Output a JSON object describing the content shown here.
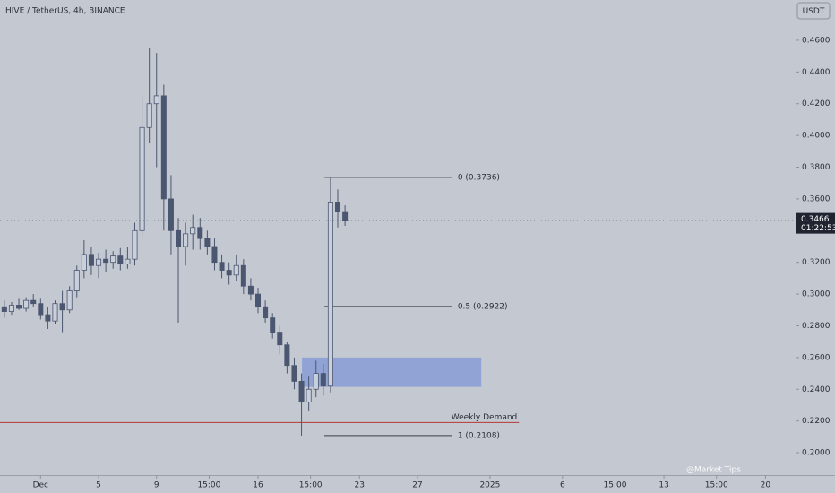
{
  "chart_data": {
    "type": "candlestick",
    "title": "HIVE / TetherUS, 4h, BINANCE",
    "currency_button": "USDT",
    "x": [
      -1.5,
      -1,
      -0.5,
      0,
      0.5,
      1,
      1.5,
      2,
      2.5,
      3,
      3.5,
      4,
      4.5,
      5,
      5.5,
      6,
      6.5,
      7,
      7.5,
      8,
      8.5,
      9,
      9.5,
      10,
      10.5,
      11,
      11.5,
      12,
      12.5,
      13,
      13.5,
      14,
      14.5,
      15,
      15.5,
      16,
      16.5,
      17,
      17.5,
      18,
      18.5,
      19,
      19.5,
      20,
      20.5,
      21,
      21.5,
      22
    ],
    "open": [
      0.292,
      0.289,
      0.293,
      0.291,
      0.296,
      0.294,
      0.287,
      0.283,
      0.294,
      0.29,
      0.302,
      0.315,
      0.325,
      0.318,
      0.322,
      0.32,
      0.324,
      0.319,
      0.322,
      0.34,
      0.405,
      0.42,
      0.425,
      0.36,
      0.34,
      0.33,
      0.338,
      0.342,
      0.335,
      0.33,
      0.32,
      0.315,
      0.312,
      0.318,
      0.305,
      0.3,
      0.292,
      0.285,
      0.276,
      0.268,
      0.255,
      0.245,
      0.232,
      0.24,
      0.25,
      0.242,
      0.358,
      0.352
    ],
    "high": [
      0.296,
      0.295,
      0.297,
      0.298,
      0.3,
      0.297,
      0.292,
      0.296,
      0.302,
      0.305,
      0.318,
      0.334,
      0.33,
      0.326,
      0.328,
      0.327,
      0.329,
      0.33,
      0.345,
      0.425,
      0.455,
      0.452,
      0.432,
      0.375,
      0.348,
      0.345,
      0.35,
      0.348,
      0.34,
      0.335,
      0.325,
      0.32,
      0.325,
      0.322,
      0.31,
      0.304,
      0.296,
      0.288,
      0.28,
      0.27,
      0.26,
      0.25,
      0.248,
      0.258,
      0.256,
      0.3736,
      0.366,
      0.356
    ],
    "low": [
      0.285,
      0.287,
      0.29,
      0.289,
      0.292,
      0.284,
      0.278,
      0.281,
      0.276,
      0.288,
      0.298,
      0.31,
      0.312,
      0.31,
      0.314,
      0.316,
      0.315,
      0.316,
      0.318,
      0.335,
      0.395,
      0.38,
      0.34,
      0.325,
      0.282,
      0.318,
      0.328,
      0.328,
      0.325,
      0.315,
      0.31,
      0.306,
      0.308,
      0.3,
      0.296,
      0.288,
      0.282,
      0.272,
      0.262,
      0.25,
      0.24,
      0.2108,
      0.226,
      0.235,
      0.236,
      0.238,
      0.342,
      0.343
    ],
    "close": [
      0.289,
      0.293,
      0.291,
      0.296,
      0.294,
      0.287,
      0.283,
      0.294,
      0.29,
      0.302,
      0.315,
      0.325,
      0.318,
      0.322,
      0.32,
      0.324,
      0.319,
      0.322,
      0.34,
      0.405,
      0.42,
      0.425,
      0.36,
      0.34,
      0.33,
      0.338,
      0.342,
      0.335,
      0.33,
      0.32,
      0.315,
      0.312,
      0.318,
      0.305,
      0.3,
      0.292,
      0.285,
      0.276,
      0.268,
      0.255,
      0.245,
      0.232,
      0.24,
      0.25,
      0.242,
      0.358,
      0.352,
      0.3466
    ],
    "up_color": "#c9cfdb",
    "down_color": "#4b5670",
    "wick_color": "#4b5670",
    "xlim": [
      -1.8,
      53.08
    ],
    "ylim": [
      0.1859,
      0.4854
    ],
    "xticks": [
      {
        "value": 1,
        "label": "Dec"
      },
      5,
      9,
      {
        "value": 12.625,
        "label": "15:00"
      },
      16,
      {
        "value": 19.625,
        "label": "15:00"
      },
      23,
      27,
      {
        "value": 32,
        "label": "2025"
      },
      {
        "value": 37,
        "label": "6"
      },
      {
        "value": 40.625,
        "label": "15:00"
      },
      {
        "value": 44,
        "label": "13"
      },
      {
        "value": 47.625,
        "label": "15:00"
      },
      {
        "value": 51,
        "label": "20"
      }
    ],
    "yticks": [
      {
        "value": 0.2,
        "label": "0.2000"
      },
      {
        "value": 0.22,
        "label": "0.2200"
      },
      {
        "value": 0.24,
        "label": "0.2400"
      },
      {
        "value": 0.26,
        "label": "0.2600"
      },
      {
        "value": 0.28,
        "label": "0.2800"
      },
      {
        "value": 0.3,
        "label": "0.3000"
      },
      {
        "value": 0.32,
        "label": "0.3200"
      },
      {
        "value": 0.34,
        "label": "0.3400"
      },
      {
        "value": 0.36,
        "label": "0.3600"
      },
      {
        "value": 0.38,
        "label": "0.3800"
      },
      {
        "value": 0.4,
        "label": "0.4000"
      },
      {
        "value": 0.42,
        "label": "0.4200"
      },
      {
        "value": 0.44,
        "label": "0.4400"
      },
      {
        "value": 0.46,
        "label": "0.4600"
      }
    ],
    "last_price": 0.3466,
    "countdown": "01:22:53",
    "demand_zone": {
      "x": [
        19.03,
        31.4
      ],
      "low": 0.2415,
      "high": 0.26,
      "color": "#7f97d6"
    },
    "weekly_demand": {
      "label": "Weekly Demand",
      "value": 0.219,
      "x_end": 34.0,
      "color": "#b23a3a"
    },
    "fib_x": [
      20.57,
      29.4
    ],
    "fib_levels": [
      {
        "label": "0 (0.3736)",
        "value": 0.3736
      },
      {
        "label": "0.5 (0.2922)",
        "value": 0.2922
      },
      {
        "label": "1 (0.2108)",
        "value": 0.2108
      }
    ],
    "watermark": "@Market Tips"
  }
}
